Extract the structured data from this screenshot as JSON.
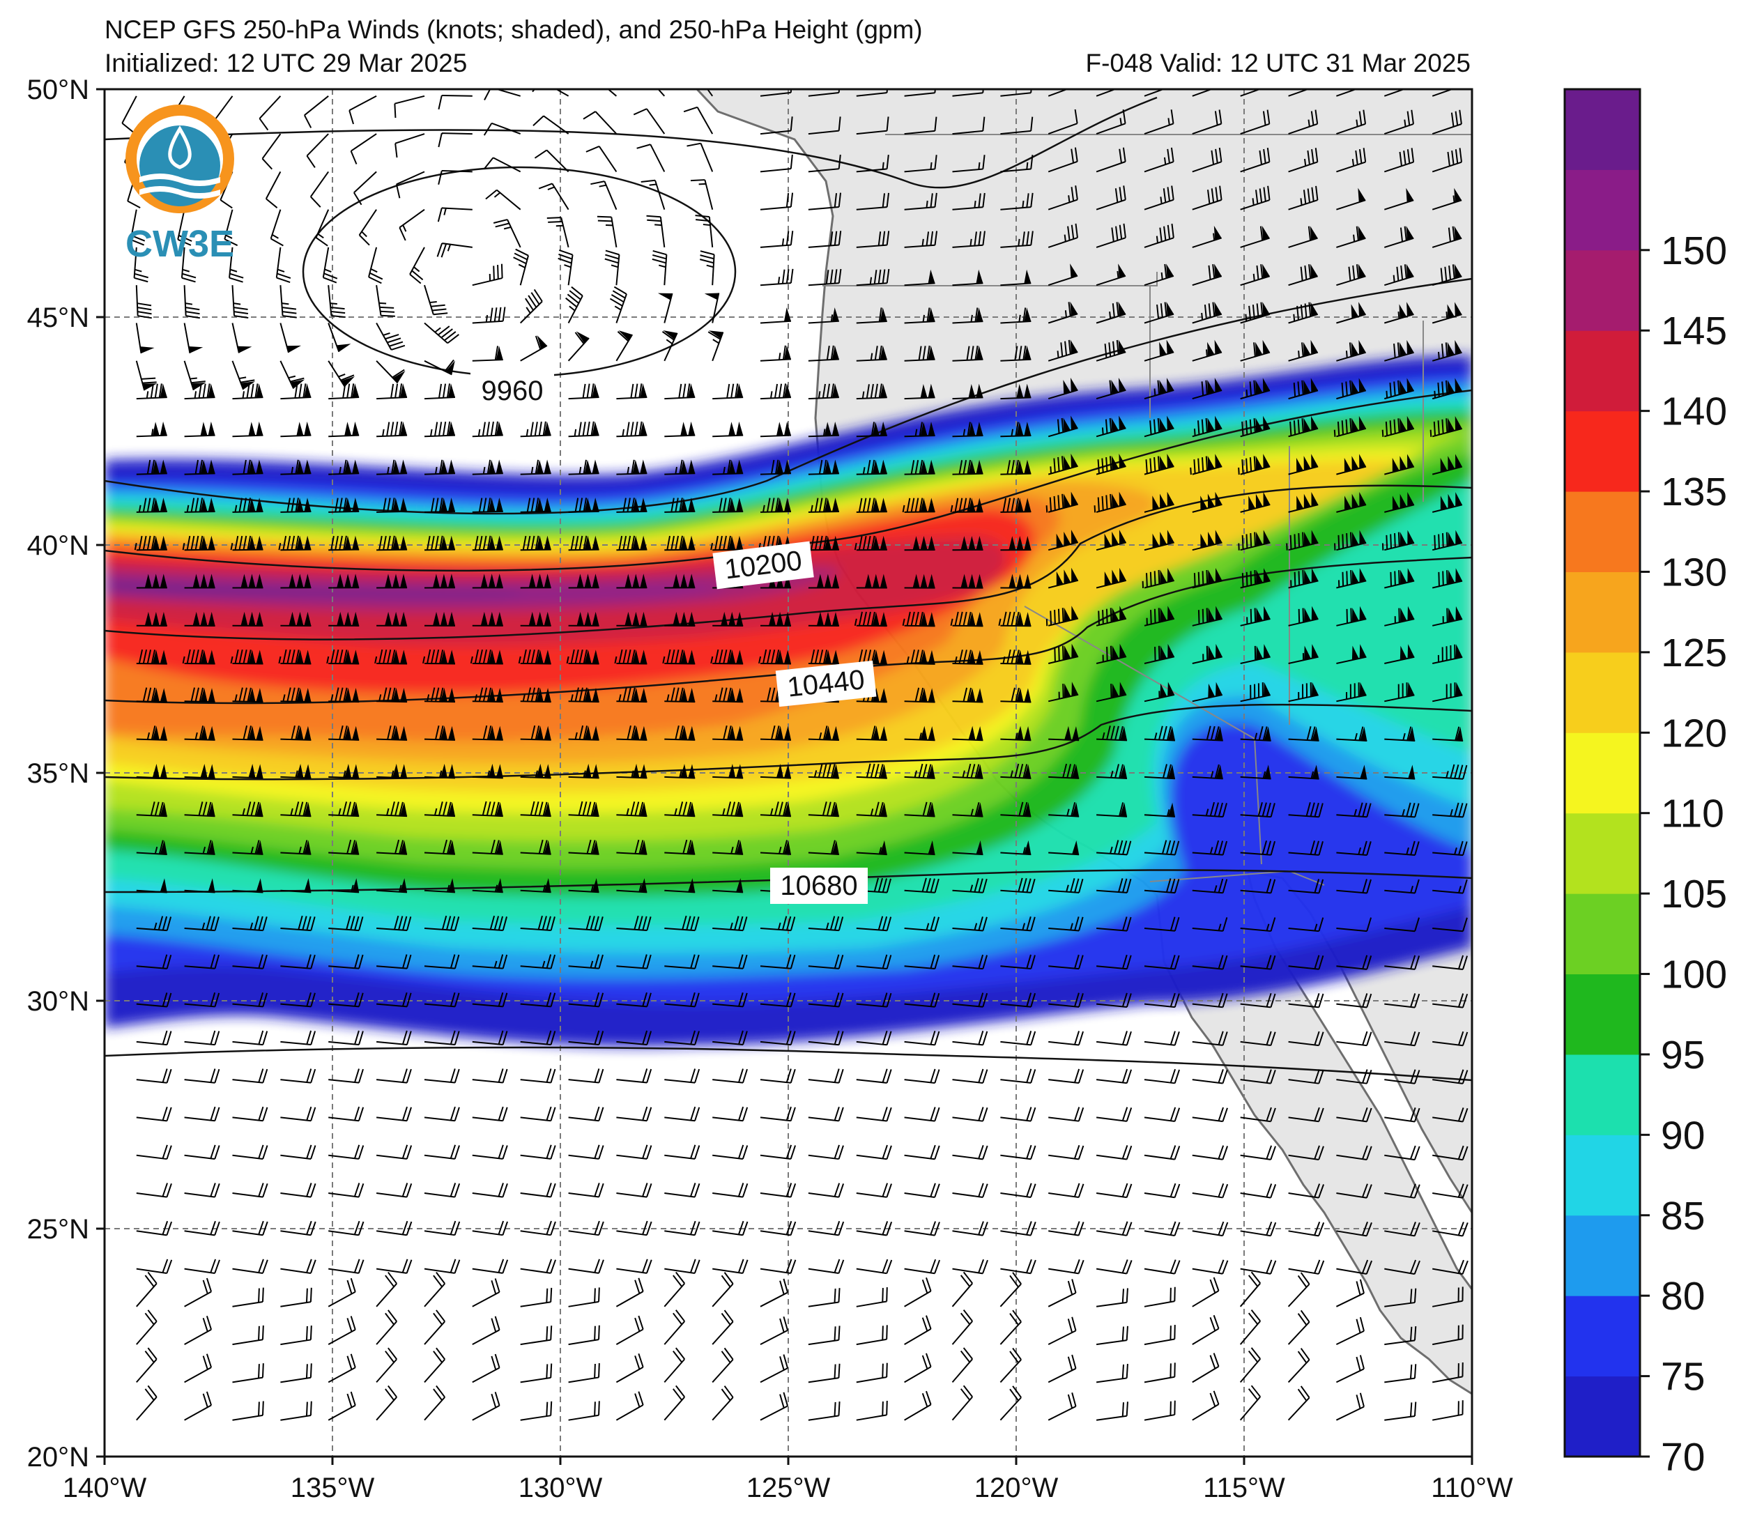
{
  "title": {
    "line1": "NCEP GFS 250-hPa Winds (knots; shaded), and 250-hPa Height (gpm)",
    "init": "Initialized: 12 UTC 29 Mar 2025",
    "valid": "F-048  Valid: 12 UTC 31 Mar 2025"
  },
  "logo": {
    "text": "CW3E",
    "icon": "cw3e-water-drop-logo"
  },
  "map": {
    "lon_range": [
      -140,
      -110
    ],
    "lat_range": [
      20,
      50
    ],
    "lon_ticks": [
      "140°W",
      "135°W",
      "130°W",
      "125°W",
      "120°W",
      "115°W",
      "110°W"
    ],
    "lat_ticks": [
      "50°N",
      "45°N",
      "40°N",
      "35°N",
      "30°N",
      "25°N",
      "20°N"
    ],
    "grid": true,
    "land_color": "#e6e6e6",
    "ocean_color": "#ffffff"
  },
  "colorbar": {
    "ticks": [
      "70",
      "75",
      "80",
      "85",
      "90",
      "95",
      "100",
      "105",
      "110",
      "120",
      "125",
      "130",
      "135",
      "140",
      "145",
      "150"
    ],
    "colors": [
      "#1f1fc8",
      "#2233ee",
      "#1e9bee",
      "#21d5e6",
      "#1ce0ae",
      "#1fb81e",
      "#6cd023",
      "#b3e21e",
      "#f5f51f",
      "#f7ce1c",
      "#f7a51d",
      "#f7781e",
      "#f7281c",
      "#d01c3a",
      "#a51c6e",
      "#8a1c88",
      "#6a1c8c"
    ]
  },
  "contour_labels": [
    "9960",
    "10200",
    "10440",
    "10680"
  ],
  "chart_data": {
    "type": "contour",
    "field_shaded": "250-hPa wind speed (knots)",
    "field_contoured": "250-hPa geopotential height (gpm)",
    "shading_levels": [
      70,
      75,
      80,
      85,
      90,
      95,
      100,
      105,
      110,
      115,
      120,
      125,
      130,
      135,
      140,
      145,
      150,
      155
    ],
    "contour_levels_labeled": [
      9960,
      10200,
      10440,
      10680
    ],
    "jet_core_max_knots": 150,
    "xlim": [
      -140,
      -110
    ],
    "ylim": [
      20,
      50
    ],
    "jet_axis": [
      {
        "lon": -140,
        "lat": 38.8
      },
      {
        "lon": -135,
        "lat": 38.5
      },
      {
        "lon": -130,
        "lat": 38.4
      },
      {
        "lon": -125,
        "lat": 38.7
      },
      {
        "lon": -122,
        "lat": 39.5
      },
      {
        "lon": -120,
        "lat": 39.3
      },
      {
        "lon": -115,
        "lat": 40.8
      },
      {
        "lon": -110,
        "lat": 41.5
      }
    ]
  }
}
